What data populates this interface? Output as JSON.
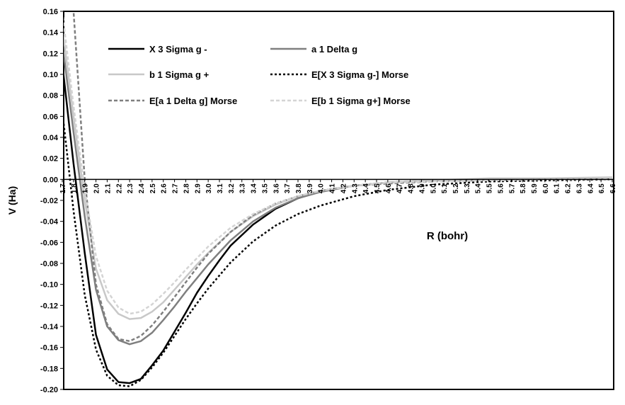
{
  "chart_data": {
    "type": "line",
    "title": "",
    "xlabel": "R (bohr)",
    "ylabel": "V (Ha)",
    "xlim": [
      1.7,
      6.6
    ],
    "ylim": [
      -0.2,
      0.16
    ],
    "grid": false,
    "legend_position": "top-left",
    "y_ticks": [
      "0.16",
      "0.14",
      "0.12",
      "0.10",
      "0.08",
      "0.06",
      "0.04",
      "0.02",
      "0.00",
      "-0.02",
      "-0.04",
      "-0.06",
      "-0.08",
      "-0.10",
      "-0.12",
      "-0.14",
      "-0.16",
      "-0.18",
      "-0.20"
    ],
    "x_ticks": [
      "1.7",
      "1.8",
      "1.9",
      "2.0",
      "2.1",
      "2.2",
      "2.3",
      "2.4",
      "2.5",
      "2.6",
      "2.7",
      "2.8",
      "2.9",
      "3.0",
      "3.1",
      "3.2",
      "3.3",
      "3.4",
      "3.5",
      "3.6",
      "3.7",
      "3.8",
      "3.9",
      "4.0",
      "4.1",
      "4.2",
      "4.3",
      "4.4",
      "4.5",
      "4.6",
      "4.7",
      "4.8",
      "4.9",
      "5.0",
      "5.1",
      "5.2",
      "5.3",
      "5.4",
      "5.5",
      "5.6",
      "5.7",
      "5.8",
      "5.9",
      "6.0",
      "6.1",
      "6.2",
      "6.3",
      "6.4",
      "6.5",
      "6.6"
    ],
    "series": [
      {
        "name": "X 3 Sigma g -",
        "color": "#000000",
        "style": "solid",
        "x": [
          1.7,
          1.8,
          1.9,
          2.0,
          2.1,
          2.2,
          2.3,
          2.4,
          2.5,
          2.6,
          2.7,
          2.8,
          2.9,
          3.0,
          3.1,
          3.2,
          3.4,
          3.6,
          3.8,
          4.0,
          4.3,
          4.6,
          5.0,
          5.5,
          6.0,
          6.6
        ],
        "y": [
          0.11,
          0.015,
          -0.07,
          -0.148,
          -0.181,
          -0.193,
          -0.194,
          -0.19,
          -0.177,
          -0.163,
          -0.145,
          -0.127,
          -0.108,
          -0.092,
          -0.077,
          -0.063,
          -0.043,
          -0.028,
          -0.018,
          -0.011,
          -0.006,
          -0.003,
          -0.001,
          0.0,
          0.0,
          0.0
        ]
      },
      {
        "name": "a 1 Delta g",
        "color": "#7f7f7f",
        "style": "solid",
        "x": [
          1.7,
          1.8,
          1.9,
          2.0,
          2.1,
          2.2,
          2.3,
          2.4,
          2.5,
          2.6,
          2.7,
          2.8,
          2.9,
          3.0,
          3.2,
          3.4,
          3.6,
          3.8,
          4.0,
          4.3,
          4.6,
          5.0,
          5.5,
          6.0,
          6.6
        ],
        "y": [
          0.13,
          0.045,
          -0.035,
          -0.105,
          -0.14,
          -0.153,
          -0.157,
          -0.154,
          -0.146,
          -0.134,
          -0.121,
          -0.107,
          -0.094,
          -0.081,
          -0.058,
          -0.04,
          -0.027,
          -0.018,
          -0.012,
          -0.006,
          -0.003,
          -0.001,
          0.0,
          0.0,
          0.0
        ]
      },
      {
        "name": "b 1 Sigma g +",
        "color": "#c8c8c8",
        "style": "solid",
        "x": [
          1.7,
          1.8,
          1.9,
          2.0,
          2.1,
          2.2,
          2.3,
          2.4,
          2.5,
          2.6,
          2.7,
          2.8,
          2.9,
          3.0,
          3.2,
          3.4,
          3.6,
          3.8,
          4.0,
          4.3,
          4.6,
          5.0,
          5.5,
          6.0,
          6.6
        ],
        "y": [
          0.145,
          0.06,
          -0.02,
          -0.085,
          -0.115,
          -0.128,
          -0.133,
          -0.132,
          -0.126,
          -0.117,
          -0.105,
          -0.093,
          -0.081,
          -0.07,
          -0.05,
          -0.035,
          -0.024,
          -0.016,
          -0.011,
          -0.006,
          -0.003,
          -0.001,
          0.001,
          0.001,
          0.002
        ]
      },
      {
        "name": "E[X 3 Sigma g-] Morse",
        "color": "#000000",
        "style": "dotted",
        "x": [
          1.7,
          1.8,
          1.9,
          2.0,
          2.1,
          2.2,
          2.3,
          2.4,
          2.5,
          2.6,
          2.7,
          2.8,
          2.9,
          3.0,
          3.2,
          3.4,
          3.6,
          3.8,
          4.0,
          4.3,
          4.6,
          5.0,
          5.5,
          6.0,
          6.6
        ],
        "y": [
          0.065,
          -0.03,
          -0.11,
          -0.162,
          -0.187,
          -0.196,
          -0.197,
          -0.191,
          -0.179,
          -0.165,
          -0.149,
          -0.133,
          -0.118,
          -0.104,
          -0.079,
          -0.059,
          -0.044,
          -0.033,
          -0.025,
          -0.016,
          -0.01,
          -0.005,
          -0.002,
          -0.001,
          0.0
        ]
      },
      {
        "name": "E[a 1 Delta g] Morse",
        "color": "#7f7f7f",
        "style": "dashed",
        "x": [
          1.7,
          1.8,
          1.9,
          2.0,
          2.1,
          2.2,
          2.3,
          2.4,
          2.5,
          2.6,
          2.7,
          2.8,
          2.9,
          3.0,
          3.2,
          3.4,
          3.6,
          3.8,
          4.0,
          4.3,
          4.6,
          5.0,
          5.5,
          6.0,
          6.6
        ],
        "y": [
          0.2,
          0.16,
          0.0,
          -0.1,
          -0.138,
          -0.152,
          -0.154,
          -0.149,
          -0.139,
          -0.126,
          -0.112,
          -0.098,
          -0.084,
          -0.071,
          -0.05,
          -0.034,
          -0.023,
          -0.016,
          -0.011,
          -0.006,
          -0.004,
          -0.002,
          -0.001,
          0.0,
          0.0
        ]
      },
      {
        "name": "E[b 1 Sigma g+] Morse",
        "color": "#d4d4d4",
        "style": "dashed",
        "x": [
          1.7,
          1.8,
          1.9,
          2.0,
          2.1,
          2.2,
          2.3,
          2.4,
          2.5,
          2.6,
          2.7,
          2.8,
          2.9,
          3.0,
          3.2,
          3.4,
          3.6,
          3.8,
          4.0,
          4.3,
          4.6,
          5.0,
          5.5,
          6.0,
          6.6
        ],
        "y": [
          0.16,
          0.07,
          -0.01,
          -0.073,
          -0.106,
          -0.122,
          -0.128,
          -0.126,
          -0.119,
          -0.109,
          -0.098,
          -0.086,
          -0.075,
          -0.064,
          -0.046,
          -0.033,
          -0.023,
          -0.016,
          -0.011,
          -0.006,
          -0.003,
          -0.002,
          -0.001,
          0.0,
          0.0
        ]
      }
    ]
  }
}
